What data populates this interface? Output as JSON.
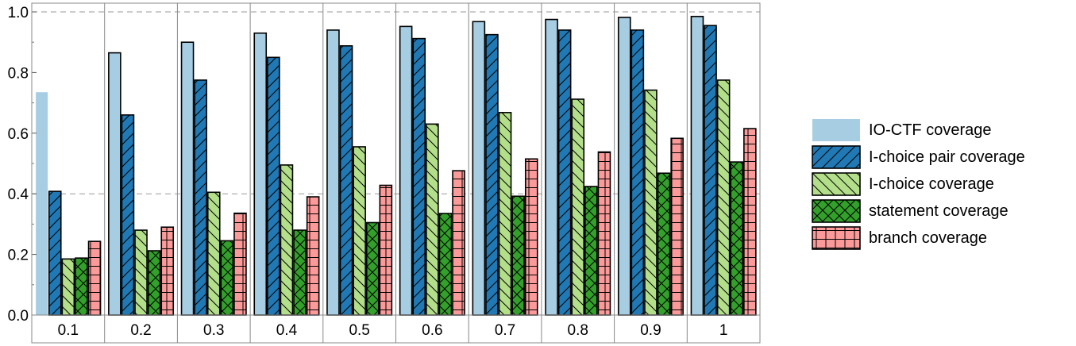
{
  "chart_data": {
    "type": "bar",
    "title": "",
    "xlabel": "",
    "ylabel": "",
    "ylim": [
      0,
      1.0
    ],
    "yticks": [
      "0.0",
      "0.2",
      "0.4",
      "0.6",
      "0.8",
      "1.0"
    ],
    "grid": "dashed horizontal at 0.4 and 1.0",
    "legend_position": "right",
    "categories": [
      "0.1",
      "0.2",
      "0.3",
      "0.4",
      "0.5",
      "0.6",
      "0.7",
      "0.8",
      "0.9",
      "1"
    ],
    "series": [
      {
        "name": "IO-CTF coverage",
        "color": "#a6cde2",
        "pattern": "none",
        "values": [
          0.735,
          0.865,
          0.9,
          0.93,
          0.94,
          0.952,
          0.968,
          0.975,
          0.982,
          0.985
        ]
      },
      {
        "name": "I-choice pair coverage",
        "color": "#2079b4",
        "pattern": "forward-diagonal",
        "values": [
          0.408,
          0.66,
          0.775,
          0.85,
          0.888,
          0.912,
          0.925,
          0.94,
          0.94,
          0.955
        ]
      },
      {
        "name": "I-choice coverage",
        "color": "#b3df8a",
        "pattern": "backward-diagonal",
        "values": [
          0.185,
          0.28,
          0.405,
          0.495,
          0.555,
          0.63,
          0.668,
          0.712,
          0.742,
          0.775
        ]
      },
      {
        "name": "statement coverage",
        "color": "#33a02b",
        "pattern": "crosshatch",
        "values": [
          0.188,
          0.212,
          0.245,
          0.28,
          0.305,
          0.335,
          0.392,
          0.424,
          0.468,
          0.505
        ]
      },
      {
        "name": "branch coverage",
        "color": "#fb9a99",
        "pattern": "grid",
        "values": [
          0.243,
          0.29,
          0.336,
          0.39,
          0.428,
          0.476,
          0.515,
          0.538,
          0.583,
          0.615
        ]
      }
    ]
  }
}
